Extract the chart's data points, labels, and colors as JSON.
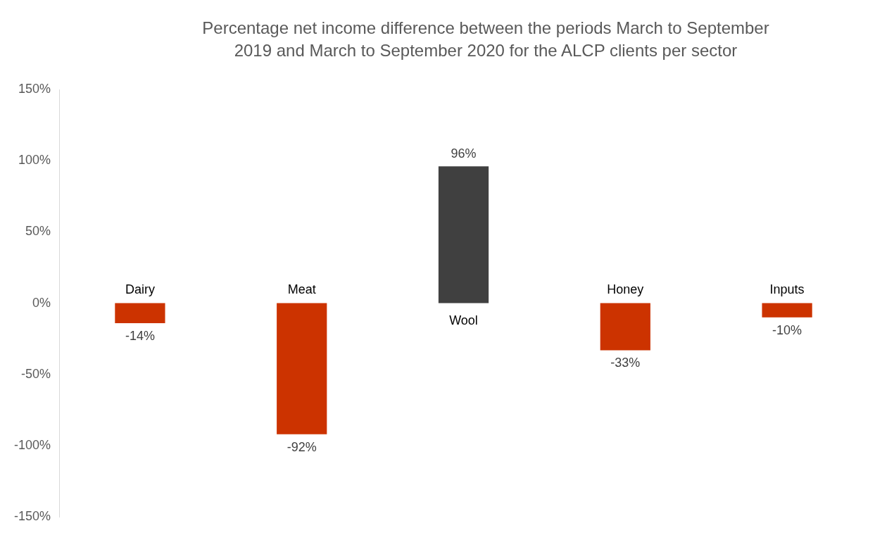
{
  "chart_data": {
    "type": "bar",
    "title": "Percentage net income difference between the periods March to September 2019 and March to September 2020 for the ALCP clients per sector",
    "categories": [
      "Dairy",
      "Meat",
      "Wool",
      "Honey",
      "Inputs"
    ],
    "values": [
      -14,
      -92,
      96,
      -33,
      -10
    ],
    "colors": [
      "#cc3300",
      "#cc3300",
      "#404040",
      "#cc3300",
      "#cc3300"
    ],
    "ylim": [
      -150,
      150
    ],
    "yticks": [
      {
        "value": -150,
        "label": "-150%"
      },
      {
        "value": -100,
        "label": "-100%"
      },
      {
        "value": -50,
        "label": "-50%"
      },
      {
        "value": 0,
        "label": "0%"
      },
      {
        "value": 50,
        "label": "50%"
      },
      {
        "value": 100,
        "label": "100%"
      },
      {
        "value": 150,
        "label": "150%"
      }
    ],
    "value_labels": [
      "-14%",
      "-92%",
      "96%",
      "-33%",
      "-10%"
    ],
    "grid": false,
    "legend": false
  }
}
